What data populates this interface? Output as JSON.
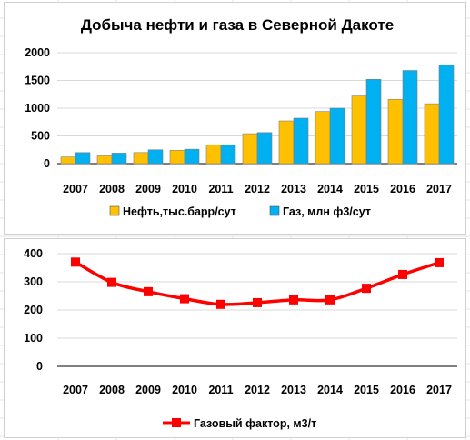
{
  "chart_data": [
    {
      "type": "bar",
      "title": "Добыча нефти и газа в Северной Дакоте",
      "categories": [
        "2007",
        "2008",
        "2009",
        "2010",
        "2011",
        "2012",
        "2013",
        "2014",
        "2015",
        "2016",
        "2017"
      ],
      "series": [
        {
          "name": "Нефть,тыс.барр/сут",
          "color": "#FFC000",
          "values": [
            120,
            140,
            200,
            240,
            340,
            540,
            770,
            940,
            1220,
            1160,
            1080
          ]
        },
        {
          "name": "Газ, млн ф3/сут",
          "color": "#00B0F0",
          "values": [
            200,
            190,
            250,
            260,
            340,
            560,
            820,
            1000,
            1520,
            1680,
            1780
          ]
        }
      ],
      "ylim": [
        0,
        2000
      ],
      "yticks": [
        0,
        500,
        1000,
        1500,
        2000
      ],
      "grid": true,
      "legend": "bottom"
    },
    {
      "type": "line",
      "categories": [
        "2007",
        "2008",
        "2009",
        "2010",
        "2011",
        "2012",
        "2013",
        "2014",
        "2015",
        "2016",
        "2017"
      ],
      "series": [
        {
          "name": "Газовый фактор, м3/т",
          "color": "#FF0000",
          "values": [
            370,
            298,
            265,
            240,
            220,
            226,
            236,
            236,
            277,
            326,
            368
          ]
        }
      ],
      "ylim": [
        0,
        400
      ],
      "yticks": [
        0,
        100,
        200,
        300,
        400
      ],
      "grid": true,
      "legend": "bottom"
    }
  ]
}
